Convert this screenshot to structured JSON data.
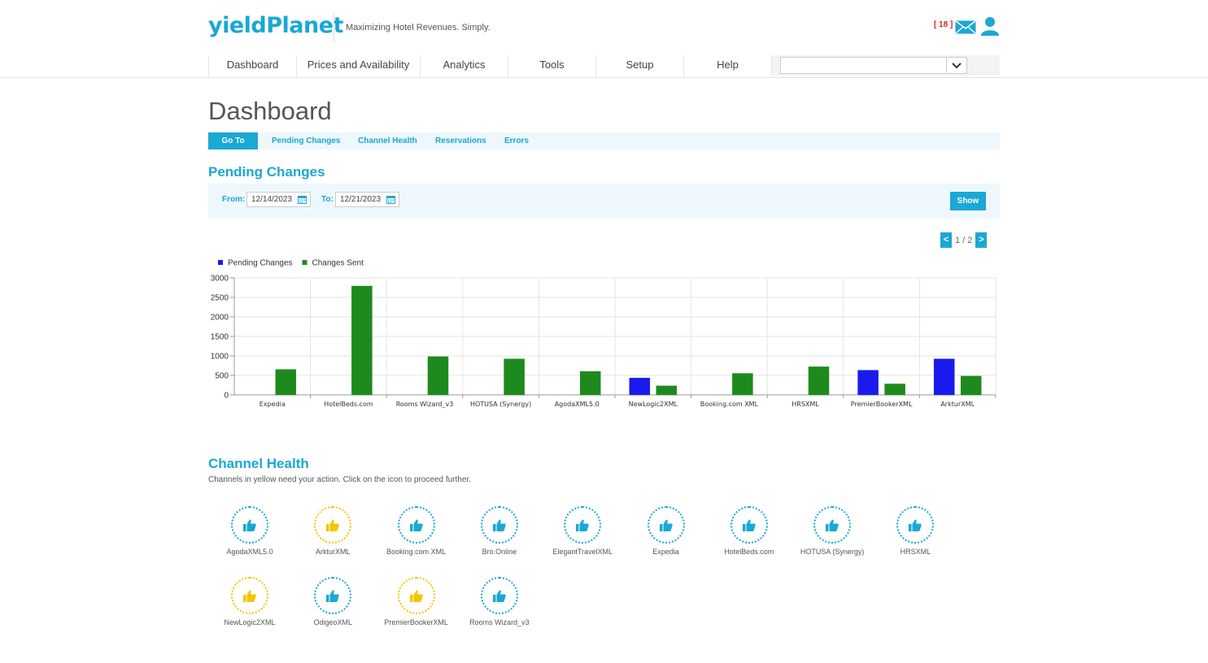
{
  "header": {
    "logo": "yieldPlanet",
    "tagline": "Maximizing Hotel Revenues. Simply.",
    "message_count": "[ 18 ]"
  },
  "nav": {
    "items": [
      {
        "label": "Dashboard"
      },
      {
        "label": "Prices and Availability"
      },
      {
        "label": "Analytics"
      },
      {
        "label": "Tools"
      },
      {
        "label": "Setup"
      },
      {
        "label": "Help"
      }
    ],
    "property_select_value": ""
  },
  "page_title": "Dashboard",
  "subnav": {
    "goto_label": "Go To",
    "links": [
      "Pending Changes",
      "Channel Health",
      "Reservations",
      "Errors"
    ]
  },
  "pending": {
    "title": "Pending Changes",
    "from_label": "From:",
    "from_value": "12/14/2023",
    "to_label": "To:",
    "to_value": "12/21/2023",
    "show_label": "Show",
    "pager": {
      "prev": "<",
      "text": "1 / 2",
      "next": ">"
    }
  },
  "chart_data": {
    "type": "bar",
    "categories": [
      "Expedia",
      "HotelBeds.com",
      "Rooms Wizard_v3",
      "HOTUSA (Synergy)",
      "AgodaXML5.0",
      "NewLogic2XML",
      "Booking.com XML",
      "HRSXML",
      "PremierBookerXML",
      "ArkturXML"
    ],
    "series": [
      {
        "name": "Pending Changes",
        "color": "#1a1aee",
        "values": [
          0,
          0,
          0,
          0,
          0,
          430,
          0,
          0,
          630,
          920
        ]
      },
      {
        "name": "Changes Sent",
        "color": "#1e8a1e",
        "values": [
          650,
          2790,
          980,
          920,
          600,
          230,
          550,
          720,
          280,
          480
        ]
      }
    ],
    "ylim": [
      0,
      3000
    ],
    "yticks": [
      0,
      500,
      1000,
      1500,
      2000,
      2500,
      3000
    ],
    "legend": "top-left",
    "grid": true
  },
  "health": {
    "title": "Channel Health",
    "note": "Channels in yellow need your action. Click on the icon to proceed further.",
    "channels": [
      {
        "name": "AgodaXML5.0",
        "status": "ok"
      },
      {
        "name": "ArkturXML",
        "status": "warn"
      },
      {
        "name": "Booking.com XML",
        "status": "ok"
      },
      {
        "name": "Bro.Online",
        "status": "ok"
      },
      {
        "name": "ElegantTravelXML",
        "status": "ok"
      },
      {
        "name": "Expedia",
        "status": "ok"
      },
      {
        "name": "HotelBeds.com",
        "status": "ok"
      },
      {
        "name": "HOTUSA (Synergy)",
        "status": "ok"
      },
      {
        "name": "HRSXML",
        "status": "ok"
      },
      {
        "name": "NewLogic2XML",
        "status": "warn"
      },
      {
        "name": "OdigeoXML",
        "status": "ok"
      },
      {
        "name": "PremierBookerXML",
        "status": "warn"
      },
      {
        "name": "Rooms Wizard_v3",
        "status": "ok"
      }
    ],
    "icon": "thumbs-up-icon",
    "ok_color": "#1aa8d4",
    "warn_color": "#f5c400"
  }
}
